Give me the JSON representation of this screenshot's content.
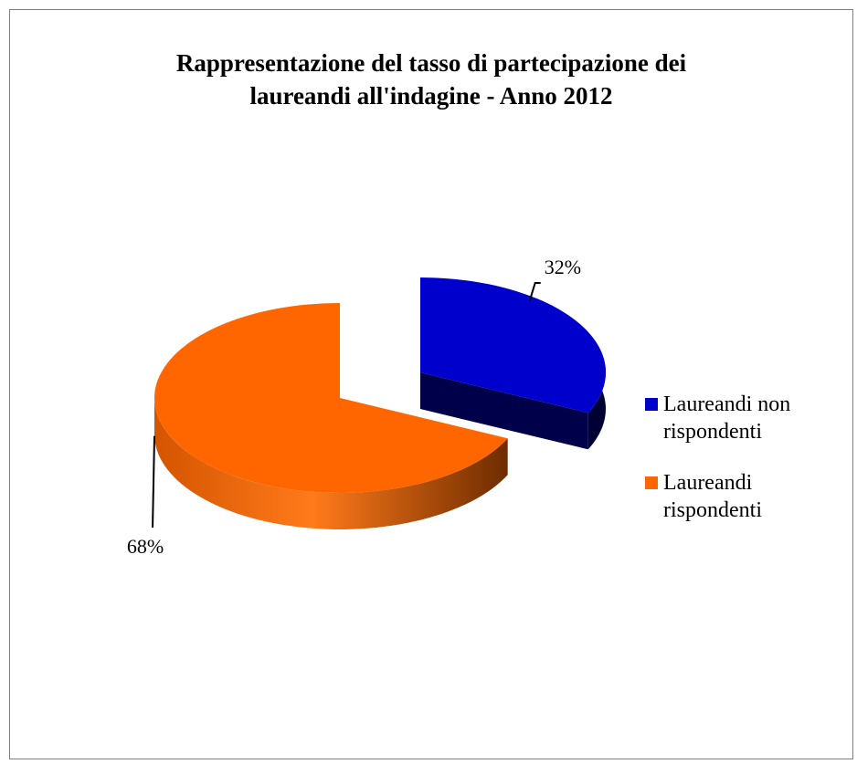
{
  "chart_data": {
    "type": "pie",
    "title": "Rappresentazione del tasso di partecipazione dei\nlaureandi all'indagine - Anno 2012",
    "slices": [
      {
        "name": "Laureandi non rispondenti",
        "value": 32,
        "label": "32%",
        "color": "#0000cc",
        "side_color": "#00005e"
      },
      {
        "name": "Laureandi rispondenti",
        "value": 68,
        "label": "68%",
        "color": "#ff6600",
        "side_color": "#b84a00"
      }
    ],
    "legend_position": "right"
  }
}
